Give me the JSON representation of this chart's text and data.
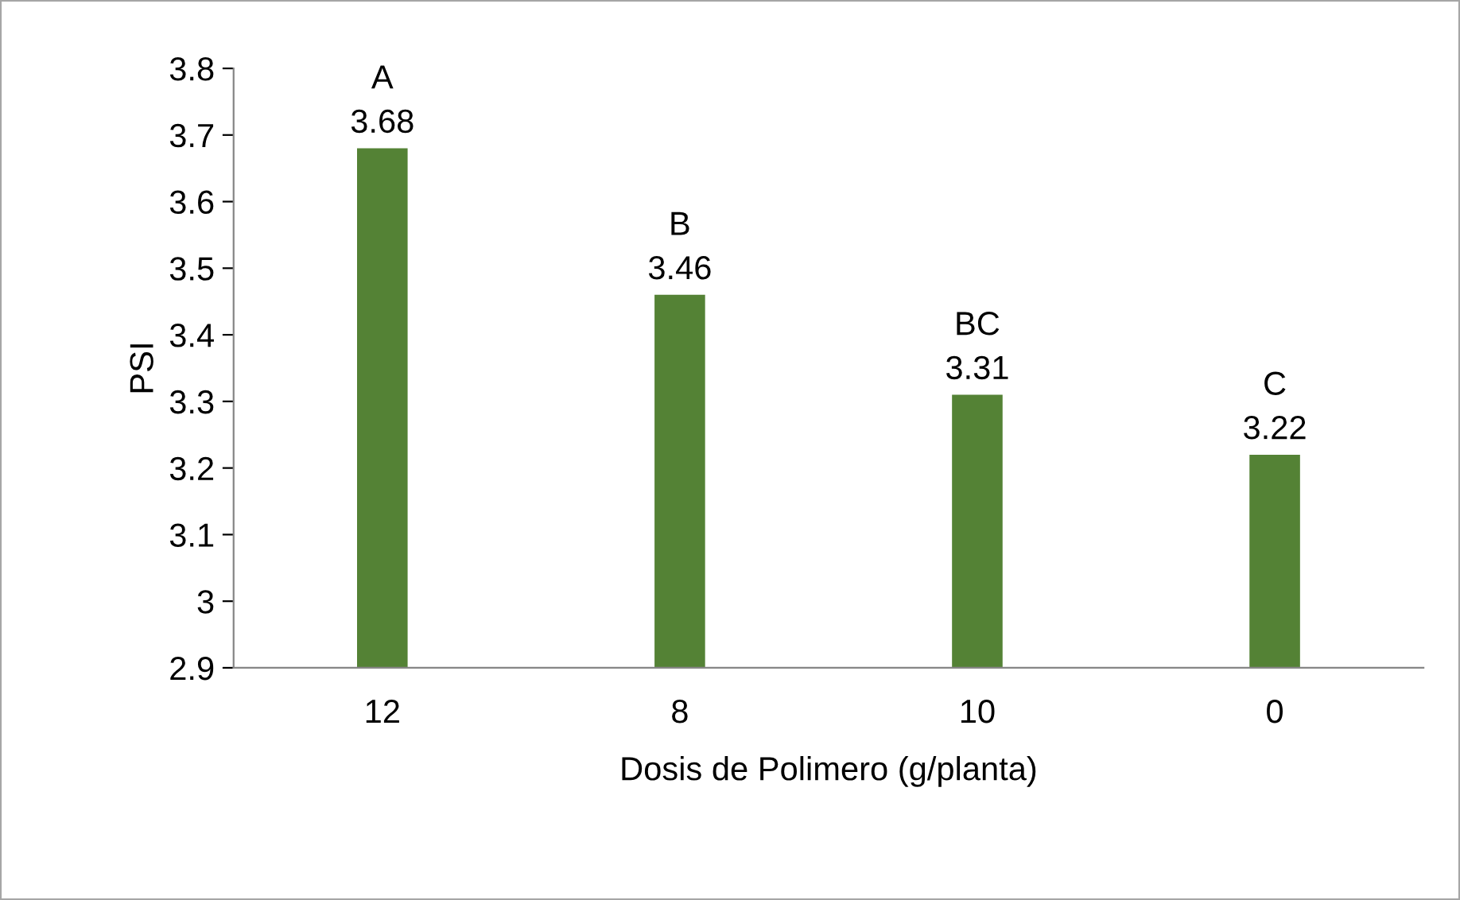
{
  "chart_data": {
    "type": "bar",
    "xlabel": "Dosis de Polimero (g/planta)",
    "ylabel": "PSI",
    "categories": [
      "12",
      "8",
      "10",
      "0"
    ],
    "values": [
      3.68,
      3.46,
      3.31,
      3.22
    ],
    "color": "#548235",
    "ylim": [
      2.9,
      3.8
    ],
    "yticks": [
      2.9,
      3,
      3.1,
      3.2,
      3.3,
      3.4,
      3.5,
      3.6,
      3.7,
      3.8
    ],
    "data_labels": true,
    "grid": false,
    "annotations": [
      {
        "text": "A",
        "x": "12",
        "y": 3.68
      },
      {
        "text": "B",
        "x": "8",
        "y": 3.46
      },
      {
        "text": "BC",
        "x": "10",
        "y": 3.31
      },
      {
        "text": "C",
        "x": "0",
        "y": 3.22
      }
    ]
  }
}
